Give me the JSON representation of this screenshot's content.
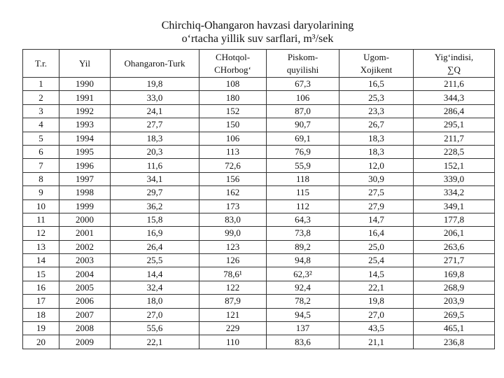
{
  "title": [
    "Chirchiq-Ohangaron havzasi daryolarining",
    "o‘rtacha yillik suv sarflari, m³/sek"
  ],
  "table": {
    "header": [
      [
        "T.r."
      ],
      [
        "Yil"
      ],
      [
        "Ohangaron-Turk"
      ],
      [
        "CHotqol-",
        "CHorbog‘"
      ],
      [
        "Piskom-",
        "quyilishi"
      ],
      [
        "Ugom-",
        "Xojikent"
      ],
      [
        "Yig‘indisi,",
        "∑Q"
      ]
    ],
    "rows": [
      [
        "1",
        "1990",
        "19,8",
        "108",
        "67,3",
        "16,5",
        "211,6"
      ],
      [
        "2",
        "1991",
        "33,0",
        "180",
        "106",
        "25,3",
        "344,3"
      ],
      [
        "3",
        "1992",
        "24,1",
        "152",
        "87,0",
        "23,3",
        "286,4"
      ],
      [
        "4",
        "1993",
        "27,7",
        "150",
        "90,7",
        "26,7",
        "295,1"
      ],
      [
        "5",
        "1994",
        "18,3",
        "106",
        "69,1",
        "18,3",
        "211,7"
      ],
      [
        "6",
        "1995",
        "20,3",
        "113",
        "76,9",
        "18,3",
        "228,5"
      ],
      [
        "7",
        "1996",
        "11,6",
        "72,6",
        "55,9",
        "12,0",
        "152,1"
      ],
      [
        "8",
        "1997",
        "34,1",
        "156",
        "118",
        "30,9",
        "339,0"
      ],
      [
        "9",
        "1998",
        "29,7",
        "162",
        "115",
        "27,5",
        "334,2"
      ],
      [
        "10",
        "1999",
        "36,2",
        "173",
        "112",
        "27,9",
        "349,1"
      ],
      [
        "11",
        "2000",
        "15,8",
        "83,0",
        "64,3",
        "14,7",
        "177,8"
      ],
      [
        "12",
        "2001",
        "16,9",
        "99,0",
        "73,8",
        "16,4",
        "206,1"
      ],
      [
        "13",
        "2002",
        "26,4",
        "123",
        "89,2",
        "25,0",
        "263,6"
      ],
      [
        "14",
        "2003",
        "25,5",
        "126",
        "94,8",
        "25,4",
        "271,7"
      ],
      [
        "15",
        "2004",
        "14,4",
        "78,6¹",
        "62,3²",
        "14,5",
        "169,8"
      ],
      [
        "16",
        "2005",
        "32,4",
        "122",
        "92,4",
        "22,1",
        "268,9"
      ],
      [
        "17",
        "2006",
        "18,0",
        "87,9",
        "78,2",
        "19,8",
        "203,9"
      ],
      [
        "18",
        "2007",
        "27,0",
        "121",
        "94,5",
        "27,0",
        "269,5"
      ],
      [
        "19",
        "2008",
        "55,6",
        "229",
        "137",
        "43,5",
        "465,1"
      ],
      [
        "20",
        "2009",
        "22,1",
        "110",
        "83,6",
        "21,1",
        "236,8"
      ]
    ]
  }
}
